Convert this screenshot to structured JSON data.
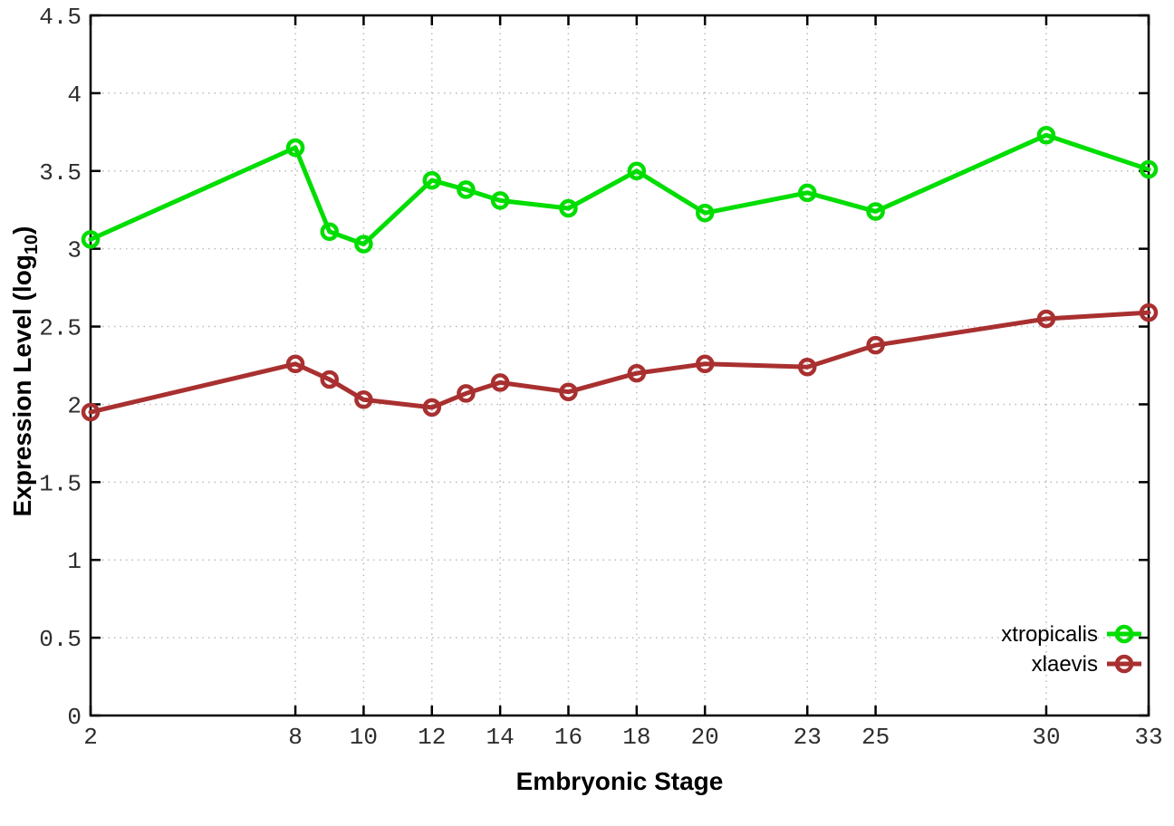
{
  "chart_data": {
    "type": "line",
    "title": "",
    "xlabel": "Embryonic Stage",
    "ylabel": {
      "text": "Expression Level (log",
      "subscript": "10",
      "suffix": ")"
    },
    "x": [
      2,
      8,
      9,
      10,
      12,
      13,
      14,
      16,
      18,
      20,
      23,
      25,
      30,
      33
    ],
    "series": [
      {
        "name": "xtropicalis",
        "color": "#00dd00",
        "values": [
          3.06,
          3.65,
          3.11,
          3.03,
          3.44,
          3.38,
          3.31,
          3.26,
          3.5,
          3.23,
          3.36,
          3.24,
          3.73,
          3.51
        ]
      },
      {
        "name": "xlaevis",
        "color": "#a93030",
        "values": [
          1.95,
          2.26,
          2.16,
          2.03,
          1.98,
          2.07,
          2.14,
          2.08,
          2.2,
          2.26,
          2.24,
          2.38,
          2.55,
          2.59
        ]
      }
    ],
    "xlim": [
      2,
      33
    ],
    "ylim": [
      0,
      4.5
    ],
    "xticks": {
      "values": [
        2,
        8,
        10,
        12,
        14,
        16,
        18,
        20,
        23,
        25,
        30,
        33
      ],
      "labels": [
        "2",
        "8",
        "10",
        "12",
        "14",
        "16",
        "18",
        "20",
        "23",
        "25",
        "30",
        "33"
      ]
    },
    "yticks": {
      "values": [
        0,
        0.5,
        1,
        1.5,
        2,
        2.5,
        3,
        3.5,
        4,
        4.5
      ],
      "labels": [
        "0",
        "0.5",
        "1",
        "1.5",
        "2",
        "2.5",
        "3",
        "3.5",
        "4",
        "4.5"
      ]
    },
    "grid": true,
    "legend": {
      "position": "bottom-right",
      "entries": [
        "xtropicalis",
        "xlaevis"
      ]
    },
    "colors": {
      "background": "#ffffff",
      "border": "#000000",
      "grid": "#bbbbbb",
      "tick_text": "#2e2e2e",
      "label_text": "#000000"
    },
    "marker": "open-circle"
  }
}
